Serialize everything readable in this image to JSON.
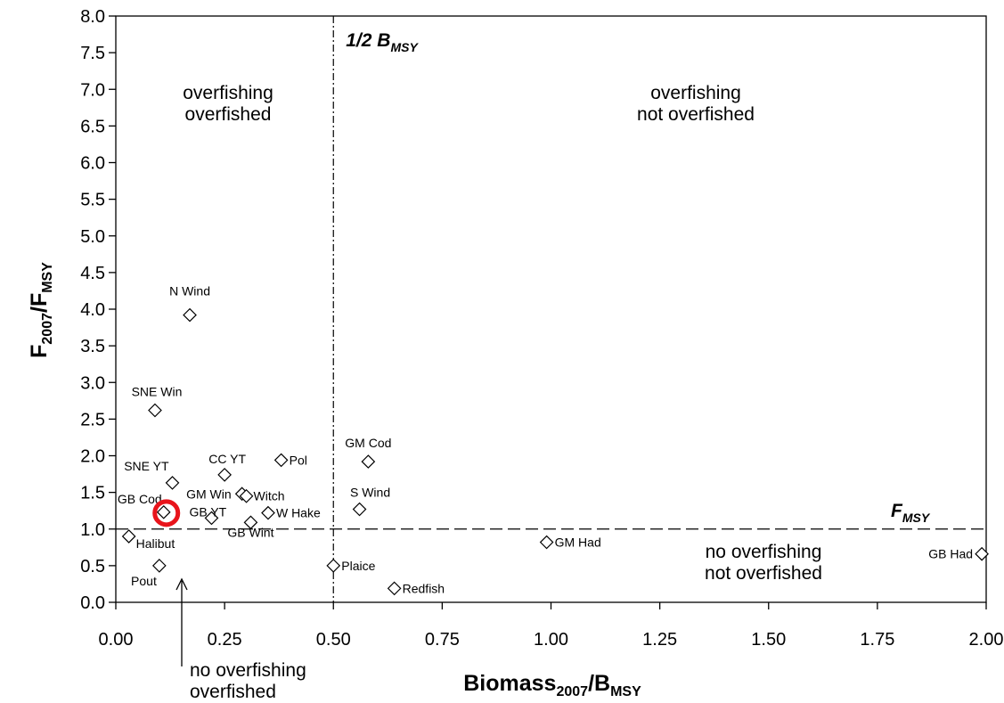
{
  "chart_data": {
    "type": "scatter",
    "xlabel": {
      "base": "Biomass",
      "sub": "2007",
      "mid": "/B",
      "sub2": "MSY"
    },
    "ylabel": {
      "base": "F",
      "sub": "2007",
      "mid": "/F",
      "sub2": "MSY"
    },
    "xlim": [
      0,
      2.0
    ],
    "ylim": [
      0,
      8.0
    ],
    "xticks": [
      "0.00",
      "0.25",
      "0.50",
      "0.75",
      "1.00",
      "1.25",
      "1.50",
      "1.75",
      "2.00"
    ],
    "yticks": [
      "0.0",
      "0.5",
      "1.0",
      "1.5",
      "2.0",
      "2.5",
      "3.0",
      "3.5",
      "4.0",
      "4.5",
      "5.0",
      "5.5",
      "6.0",
      "6.5",
      "7.0",
      "7.5",
      "8.0"
    ],
    "marker": "open-diamond",
    "points": [
      {
        "label": "N Wind",
        "x": 0.17,
        "y": 3.92
      },
      {
        "label": "SNE Win",
        "x": 0.09,
        "y": 2.62
      },
      {
        "label": "Pol",
        "x": 0.38,
        "y": 1.94
      },
      {
        "label": "GM Cod",
        "x": 0.58,
        "y": 1.92
      },
      {
        "label": "CC YT",
        "x": 0.25,
        "y": 1.74
      },
      {
        "label": "SNE YT",
        "x": 0.13,
        "y": 1.63
      },
      {
        "label": "GM Win",
        "x": 0.29,
        "y": 1.48
      },
      {
        "label": "Witch",
        "x": 0.3,
        "y": 1.45
      },
      {
        "label": "S Wind",
        "x": 0.56,
        "y": 1.27
      },
      {
        "label": "GB Cod",
        "x": 0.11,
        "y": 1.23
      },
      {
        "label": "W Hake",
        "x": 0.35,
        "y": 1.22
      },
      {
        "label": "GB YT",
        "x": 0.22,
        "y": 1.15
      },
      {
        "label": "GB Wint",
        "x": 0.31,
        "y": 1.09
      },
      {
        "label": "Halibut",
        "x": 0.03,
        "y": 0.9
      },
      {
        "label": "GM Had",
        "x": 0.99,
        "y": 0.82
      },
      {
        "label": "GB Had",
        "x": 1.99,
        "y": 0.66
      },
      {
        "label": "Pout",
        "x": 0.1,
        "y": 0.5
      },
      {
        "label": "Plaice",
        "x": 0.5,
        "y": 0.5
      },
      {
        "label": "Redfish",
        "x": 0.64,
        "y": 0.19
      }
    ],
    "reference_lines": [
      {
        "orientation": "vertical",
        "value": 0.5,
        "style": "dash-dot",
        "label": "1/2 B",
        "label_sub": "MSY"
      },
      {
        "orientation": "horizontal",
        "value": 1.0,
        "style": "dashed",
        "label": "F",
        "label_sub": "MSY"
      }
    ],
    "regions": [
      {
        "lines": [
          "overfishing",
          "overfished"
        ]
      },
      {
        "lines": [
          "overfishing",
          "not overfished"
        ]
      },
      {
        "lines": [
          "no overfishing",
          "not overfished"
        ]
      },
      {
        "lines": [
          "no overfishing",
          "overfished"
        ]
      }
    ],
    "highlight": {
      "target": "GB Cod",
      "shape": "circle",
      "color": "#e8141b"
    },
    "grid": false
  }
}
